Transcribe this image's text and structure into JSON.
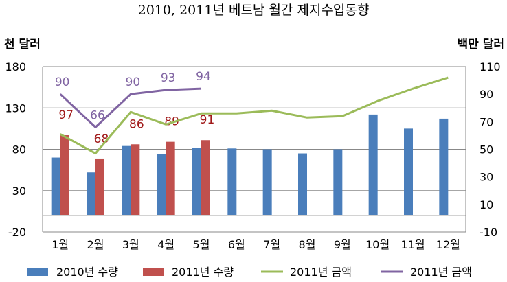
{
  "chart_data": {
    "type": "bar",
    "title": "2010, 2011년 베트남 월간 제지수입동향",
    "left_unit": "천 달러",
    "right_unit": "백만 달러",
    "categories": [
      "1월",
      "2월",
      "3월",
      "4월",
      "5월",
      "6월",
      "7월",
      "8월",
      "9월",
      "10월",
      "11월",
      "12월"
    ],
    "left_axis": {
      "range": [
        -20,
        180
      ],
      "ticks": [
        "-20",
        "30",
        "80",
        "130",
        "180"
      ]
    },
    "right_axis": {
      "range": [
        -10,
        110
      ],
      "ticks": [
        "-10",
        "10",
        "30",
        "50",
        "70",
        "90",
        "110"
      ]
    },
    "grid": "horizontal",
    "legend_position": "bottom",
    "series": [
      {
        "name": "2010년 수량",
        "type": "bar",
        "axis": "left",
        "color": "#4a7ebb",
        "values": [
          70,
          52,
          84,
          74,
          82,
          81,
          80,
          75,
          80,
          122,
          105,
          117
        ]
      },
      {
        "name": "2011년 수량",
        "type": "bar",
        "axis": "left",
        "color": "#c0504d",
        "values": [
          97,
          68,
          86,
          89,
          91,
          null,
          null,
          null,
          null,
          null,
          null,
          null
        ],
        "labels": [
          "97",
          "68",
          "86",
          "89",
          "91"
        ]
      },
      {
        "name": "2011년 금액",
        "type": "line",
        "axis": "right",
        "color": "#9bbb59",
        "values": [
          61,
          47,
          77,
          68,
          76,
          76,
          78,
          73,
          74,
          85,
          94,
          102
        ]
      },
      {
        "name": "2011년 금액",
        "type": "line",
        "axis": "right",
        "color": "#8064a2",
        "values": [
          90,
          66,
          90,
          93,
          94,
          null,
          null,
          null,
          null,
          null,
          null,
          null
        ],
        "labels": [
          "90",
          "66",
          "90",
          "93",
          "94"
        ]
      }
    ]
  }
}
